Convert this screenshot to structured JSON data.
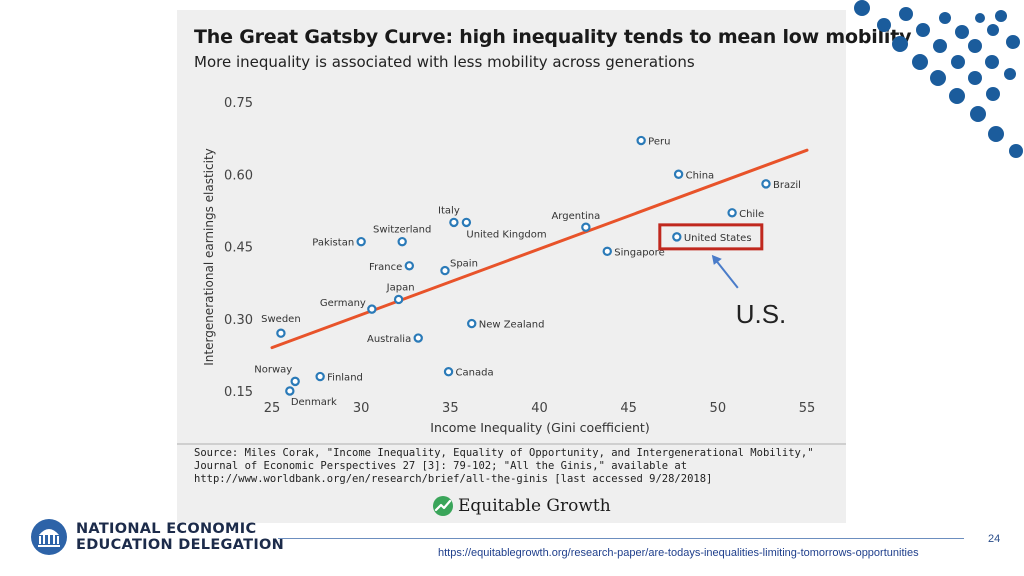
{
  "chart_data": {
    "type": "scatter",
    "title": "The Great Gatsby Curve: high inequality tends to mean low mobility",
    "subtitle": "More inequality is associated with less mobility across generations",
    "xlabel": "Income Inequality (Gini coefficient)",
    "ylabel": "Intergenerational earnings elasticity",
    "xlim": [
      25,
      55
    ],
    "ylim": [
      0.15,
      0.75
    ],
    "x_ticks": [
      "25",
      "30",
      "35",
      "40",
      "45",
      "50",
      "55"
    ],
    "y_ticks": [
      "0.15",
      "0.30",
      "0.45",
      "0.60",
      "0.75"
    ],
    "trendline": {
      "x": [
        25,
        55
      ],
      "y": [
        0.24,
        0.65
      ]
    },
    "highlight": "United States",
    "annotation": "U.S.",
    "points": [
      {
        "label": "Peru",
        "x": 45.7,
        "y": 0.67
      },
      {
        "label": "China",
        "x": 47.8,
        "y": 0.6
      },
      {
        "label": "Brazil",
        "x": 52.7,
        "y": 0.58
      },
      {
        "label": "Chile",
        "x": 50.8,
        "y": 0.52
      },
      {
        "label": "United States",
        "x": 47.7,
        "y": 0.47
      },
      {
        "label": "Singapore",
        "x": 43.8,
        "y": 0.44
      },
      {
        "label": "Argentina",
        "x": 42.6,
        "y": 0.49
      },
      {
        "label": "Italy",
        "x": 35.2,
        "y": 0.5
      },
      {
        "label": "United Kingdom",
        "x": 35.9,
        "y": 0.5
      },
      {
        "label": "Switzerland",
        "x": 32.3,
        "y": 0.46
      },
      {
        "label": "Pakistan",
        "x": 30.0,
        "y": 0.46
      },
      {
        "label": "France",
        "x": 32.7,
        "y": 0.41
      },
      {
        "label": "Spain",
        "x": 34.7,
        "y": 0.4
      },
      {
        "label": "Japan",
        "x": 32.1,
        "y": 0.34
      },
      {
        "label": "Germany",
        "x": 30.6,
        "y": 0.32
      },
      {
        "label": "New Zealand",
        "x": 36.2,
        "y": 0.29
      },
      {
        "label": "Sweden",
        "x": 25.5,
        "y": 0.27
      },
      {
        "label": "Australia",
        "x": 33.2,
        "y": 0.26
      },
      {
        "label": "Canada",
        "x": 34.9,
        "y": 0.19
      },
      {
        "label": "Finland",
        "x": 27.7,
        "y": 0.18
      },
      {
        "label": "Norway",
        "x": 26.3,
        "y": 0.17
      },
      {
        "label": "Denmark",
        "x": 26.0,
        "y": 0.15
      }
    ]
  },
  "source": {
    "text": "Source: Miles Corak, \"Income Inequality, Equality of Opportunity, and Intergenerational Mobility,\" Journal of Economic Perspectives 27 [3]: 79-102; \"All the Ginis,\" available at http://www.worldbank.org/en/research/brief/all-the-ginis [last accessed 9/28/2018]"
  },
  "publisher_logo": {
    "name": "Equitable Growth"
  },
  "org_logo": {
    "line1": "NATIONAL ECONOMIC",
    "line2": "EDUCATION DELEGATION"
  },
  "footer": {
    "page_number": "24",
    "url": "https://equitablegrowth.org/research-paper/are-todays-inequalities-limiting-tomorrows-opportunities"
  },
  "colors": {
    "trend": "#e8532a",
    "point": "#2a7ab8",
    "highlight_box": "#c0281e",
    "arrow": "#4a7cc9",
    "dots": "#1b5c9c",
    "org_dark": "#1c2b4a"
  }
}
